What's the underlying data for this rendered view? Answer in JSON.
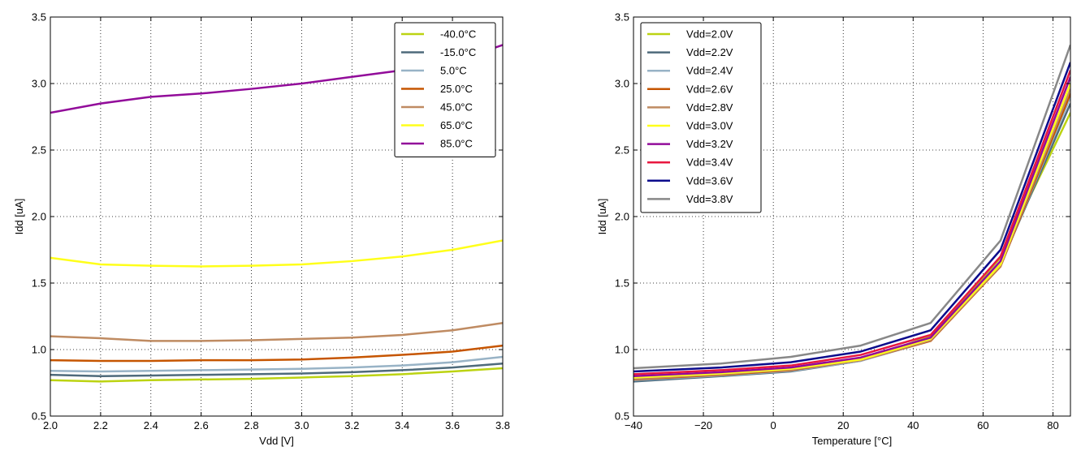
{
  "chart_data": [
    {
      "type": "line",
      "xlabel": "Vdd [V]",
      "ylabel": "Idd [uA]",
      "xlim": [
        2.0,
        3.8
      ],
      "ylim": [
        0.5,
        3.5
      ],
      "x": [
        2.0,
        2.2,
        2.4,
        2.6,
        2.8,
        3.0,
        3.2,
        3.4,
        3.6,
        3.8
      ],
      "xticks": [
        "2.0",
        "2.2",
        "2.4",
        "2.6",
        "2.8",
        "3.0",
        "3.2",
        "3.4",
        "3.6",
        "3.8"
      ],
      "yticks": [
        "0.5",
        "1.0",
        "1.5",
        "2.0",
        "2.5",
        "3.0",
        "3.5"
      ],
      "grid": true,
      "legend_position": "top-right",
      "series": [
        {
          "name": "-40.0°C",
          "color": "#bcd312",
          "values": [
            0.77,
            0.76,
            0.77,
            0.775,
            0.78,
            0.79,
            0.8,
            0.815,
            0.835,
            0.86
          ]
        },
        {
          "name": "-15.0°C",
          "color": "#4e6a7b",
          "values": [
            0.81,
            0.8,
            0.805,
            0.81,
            0.815,
            0.82,
            0.83,
            0.845,
            0.865,
            0.895
          ]
        },
        {
          "name": "5.0°C",
          "color": "#98b3c6",
          "values": [
            0.84,
            0.835,
            0.84,
            0.845,
            0.85,
            0.855,
            0.865,
            0.88,
            0.905,
            0.945
          ]
        },
        {
          "name": "25.0°C",
          "color": "#c65500",
          "values": [
            0.92,
            0.915,
            0.915,
            0.92,
            0.92,
            0.925,
            0.94,
            0.96,
            0.985,
            1.03
          ]
        },
        {
          "name": "45.0°C",
          "color": "#bf8b62",
          "values": [
            1.1,
            1.085,
            1.065,
            1.065,
            1.07,
            1.08,
            1.09,
            1.11,
            1.145,
            1.2
          ]
        },
        {
          "name": "65.0°C",
          "color": "#ffff1a",
          "values": [
            1.69,
            1.64,
            1.63,
            1.625,
            1.63,
            1.64,
            1.665,
            1.7,
            1.75,
            1.82
          ]
        },
        {
          "name": "85.0°C",
          "color": "#920c9a",
          "values": [
            2.78,
            2.85,
            2.9,
            2.925,
            2.96,
            3.0,
            3.05,
            3.1,
            3.16,
            3.29
          ]
        }
      ]
    },
    {
      "type": "line",
      "xlabel": "Temperature [°C]",
      "ylabel": "Idd [uA]",
      "xlim": [
        -40,
        85
      ],
      "ylim": [
        0.5,
        3.5
      ],
      "x": [
        -40,
        -15,
        5,
        25,
        45,
        65,
        85
      ],
      "xticks": [
        "−40",
        "−20",
        "0",
        "20",
        "40",
        "60",
        "80"
      ],
      "xtick_values": [
        -40,
        -20,
        0,
        20,
        40,
        60,
        80
      ],
      "yticks": [
        "0.5",
        "1.0",
        "1.5",
        "2.0",
        "2.5",
        "3.0",
        "3.5"
      ],
      "grid": true,
      "legend_position": "top-left",
      "series": [
        {
          "name": "Vdd=2.0V",
          "color": "#bcd312",
          "values": [
            0.77,
            0.81,
            0.84,
            0.92,
            1.1,
            1.69,
            2.78
          ]
        },
        {
          "name": "Vdd=2.2V",
          "color": "#4e6a7b",
          "values": [
            0.76,
            0.8,
            0.835,
            0.915,
            1.085,
            1.64,
            2.85
          ]
        },
        {
          "name": "Vdd=2.4V",
          "color": "#98b3c6",
          "values": [
            0.77,
            0.805,
            0.84,
            0.915,
            1.065,
            1.63,
            2.9
          ]
        },
        {
          "name": "Vdd=2.6V",
          "color": "#c65500",
          "values": [
            0.775,
            0.81,
            0.845,
            0.92,
            1.065,
            1.625,
            2.925
          ]
        },
        {
          "name": "Vdd=2.8V",
          "color": "#bf8b62",
          "values": [
            0.78,
            0.815,
            0.85,
            0.92,
            1.07,
            1.63,
            2.96
          ]
        },
        {
          "name": "Vdd=3.0V",
          "color": "#ffff1a",
          "values": [
            0.79,
            0.82,
            0.855,
            0.925,
            1.08,
            1.64,
            3.0
          ]
        },
        {
          "name": "Vdd=3.2V",
          "color": "#920c9a",
          "values": [
            0.8,
            0.83,
            0.865,
            0.94,
            1.09,
            1.665,
            3.05
          ]
        },
        {
          "name": "Vdd=3.4V",
          "color": "#e8173f",
          "values": [
            0.815,
            0.845,
            0.88,
            0.96,
            1.11,
            1.7,
            3.1
          ]
        },
        {
          "name": "Vdd=3.6V",
          "color": "#0b0b8c",
          "values": [
            0.835,
            0.865,
            0.905,
            0.985,
            1.145,
            1.75,
            3.16
          ]
        },
        {
          "name": "Vdd=3.8V",
          "color": "#888888",
          "values": [
            0.86,
            0.895,
            0.945,
            1.03,
            1.2,
            1.82,
            3.29
          ]
        }
      ]
    }
  ]
}
